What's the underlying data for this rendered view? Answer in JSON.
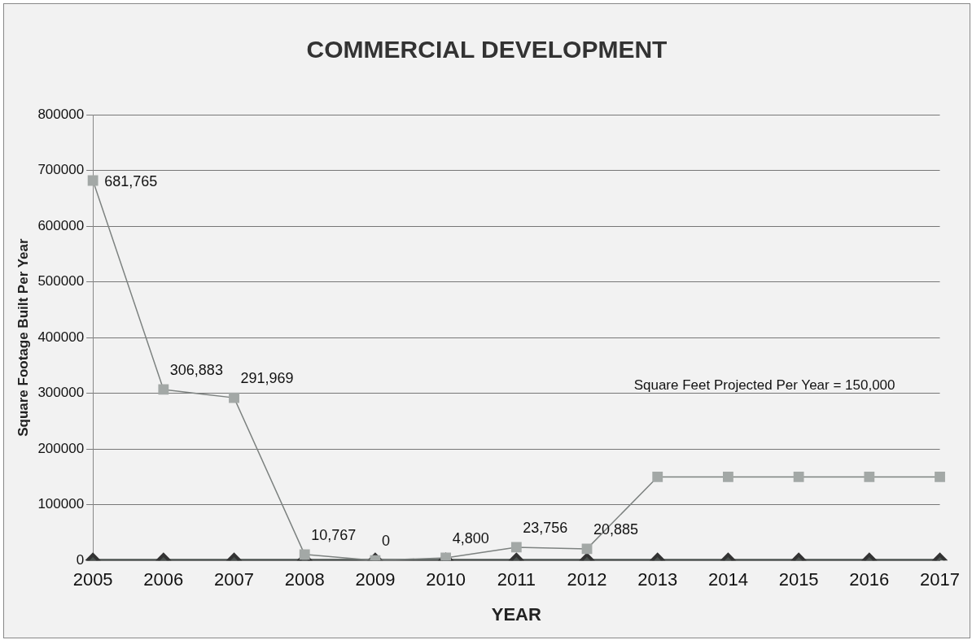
{
  "chart_data": {
    "type": "line",
    "title": "COMMERCIAL DEVELOPMENT",
    "xlabel": "YEAR",
    "ylabel": "Square Footage Built Per Year",
    "categories": [
      "2005",
      "2006",
      "2007",
      "2008",
      "2009",
      "2010",
      "2011",
      "2012",
      "2013",
      "2014",
      "2015",
      "2016",
      "2017"
    ],
    "series": [
      {
        "color": "#a3a8a6",
        "marker": "square",
        "values": [
          681765,
          306883,
          291969,
          10767,
          0,
          4800,
          23756,
          20885,
          150000,
          150000,
          150000,
          150000,
          150000
        ],
        "value_labels": [
          "681,765",
          "306,883",
          "291,969",
          "10,767",
          "0",
          "4,800",
          "23,756",
          "20,885",
          null,
          null,
          null,
          null,
          null
        ]
      },
      {
        "color": "#4b524f",
        "marker": "diamond",
        "values": [
          0,
          0,
          0,
          0,
          0,
          0,
          0,
          0,
          0,
          0,
          0,
          0,
          0
        ]
      }
    ],
    "ylim": [
      0,
      800000
    ],
    "yticks": [
      0,
      100000,
      200000,
      300000,
      400000,
      500000,
      600000,
      700000,
      800000
    ],
    "grid": "y",
    "legend": false,
    "annotations": [
      "Square Feet Projected Per Year = 150,000"
    ]
  }
}
